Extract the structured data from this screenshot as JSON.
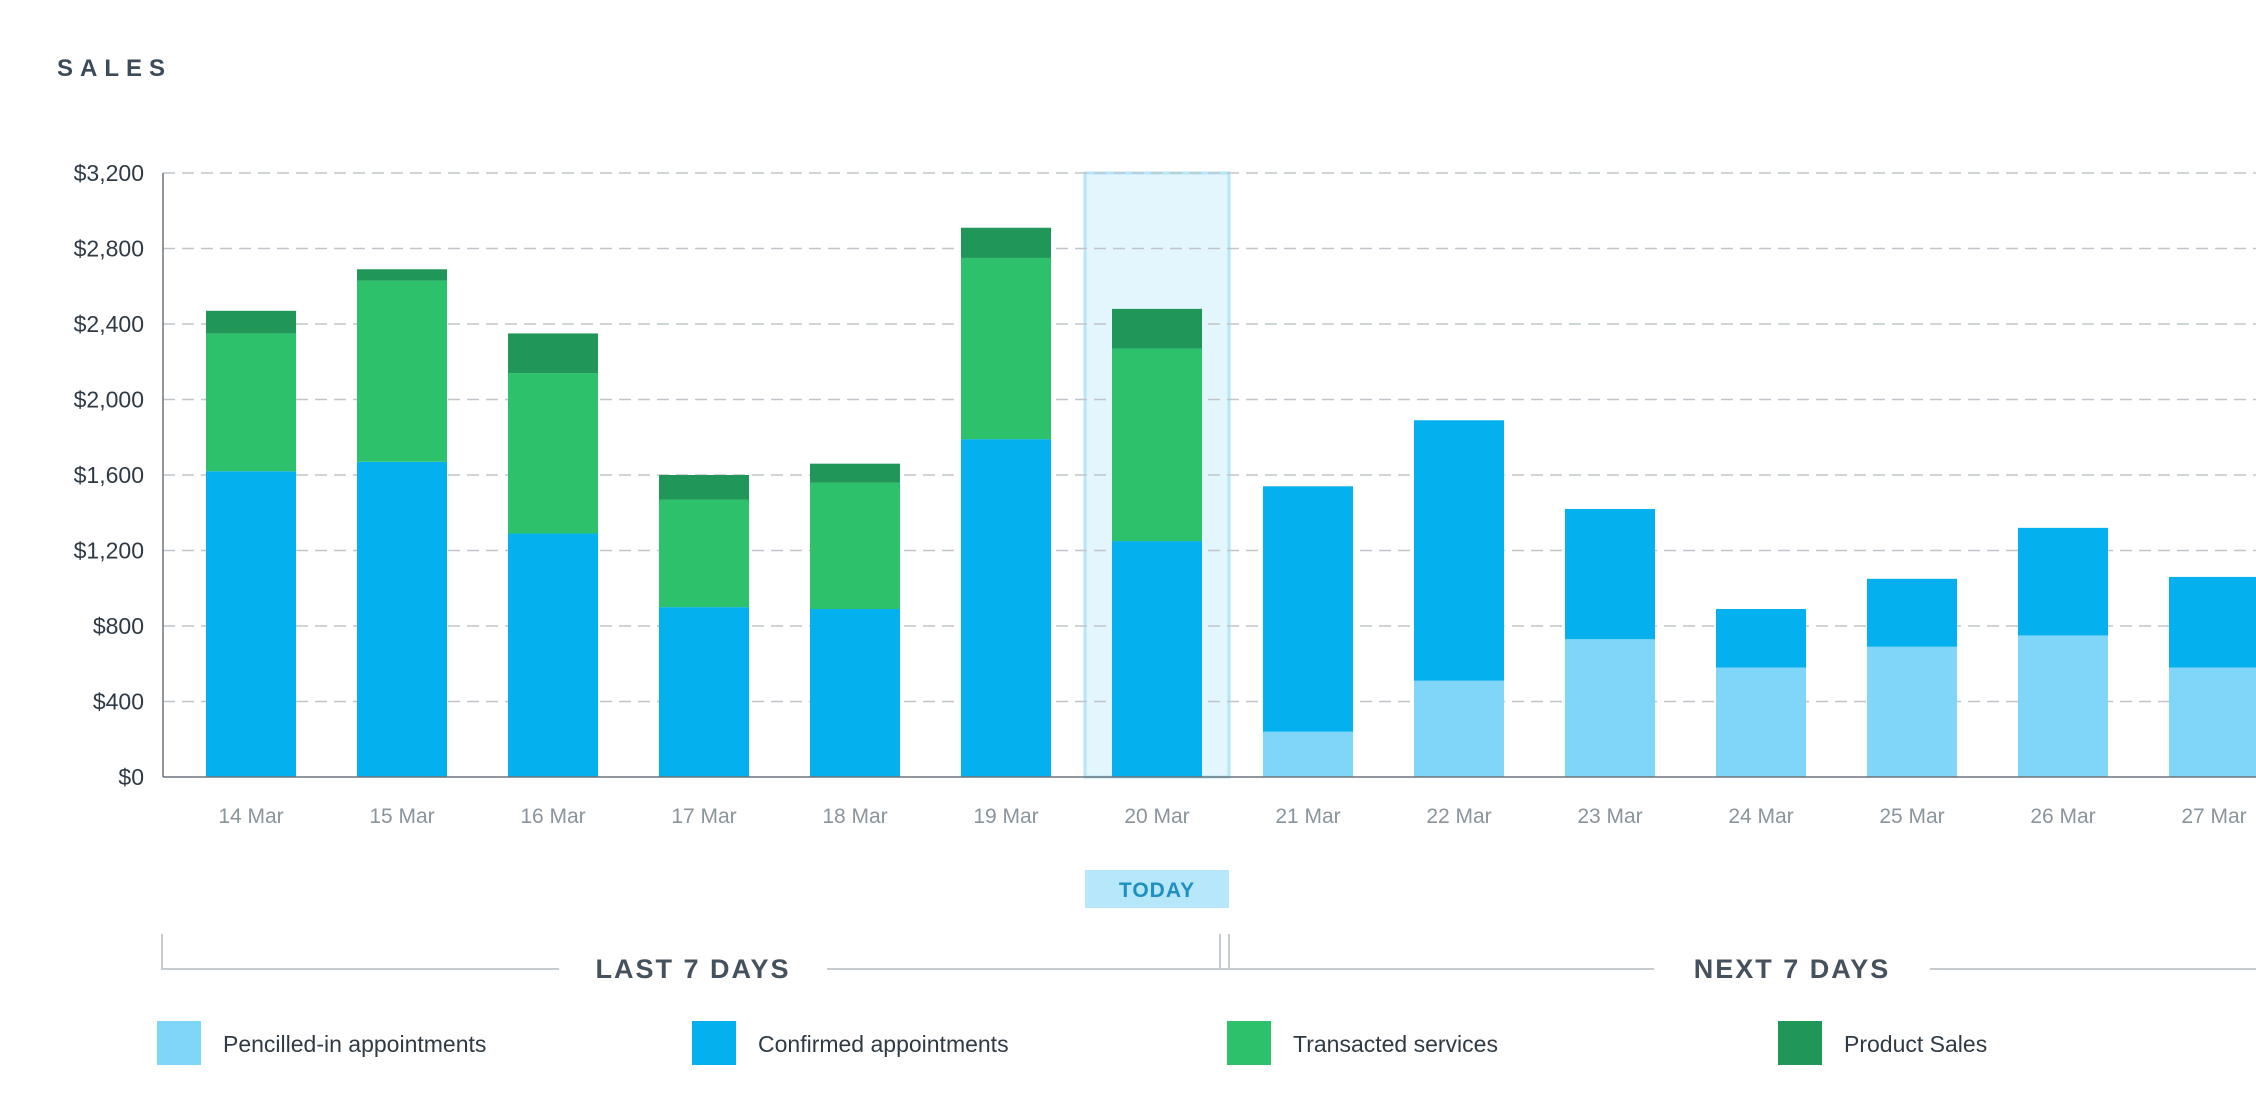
{
  "header": {
    "title": "SALES"
  },
  "chart_data": {
    "type": "bar",
    "stacked": true,
    "title": "SALES",
    "xlabel": "",
    "ylabel": "",
    "ylim": [
      0,
      3200
    ],
    "grid": true,
    "legend_position": "bottom",
    "y_ticks": [
      {
        "value": 0,
        "label": "$0"
      },
      {
        "value": 400,
        "label": "$400"
      },
      {
        "value": 800,
        "label": "$800"
      },
      {
        "value": 1200,
        "label": "$1,200"
      },
      {
        "value": 1600,
        "label": "$1,600"
      },
      {
        "value": 2000,
        "label": "$2,000"
      },
      {
        "value": 2400,
        "label": "$2,400"
      },
      {
        "value": 2800,
        "label": "$2,800"
      },
      {
        "value": 3200,
        "label": "$3,200"
      }
    ],
    "categories": [
      "14 Mar",
      "15 Mar",
      "16 Mar",
      "17 Mar",
      "18 Mar",
      "19 Mar",
      "20 Mar",
      "21 Mar",
      "22 Mar",
      "23 Mar",
      "24 Mar",
      "25 Mar",
      "26 Mar",
      "27 Mar"
    ],
    "series": [
      {
        "name": "Pencilled-in appointments",
        "color": "#80d6f8",
        "values": [
          0,
          0,
          0,
          0,
          0,
          0,
          0,
          240,
          510,
          730,
          580,
          690,
          750,
          580
        ]
      },
      {
        "name": "Confirmed appointments",
        "color": "#04b1ee",
        "values": [
          1620,
          1670,
          1290,
          900,
          890,
          1790,
          1250,
          1300,
          1380,
          690,
          310,
          360,
          570,
          480
        ]
      },
      {
        "name": "Transacted services",
        "color": "#2ec16c",
        "values": [
          730,
          960,
          850,
          570,
          670,
          960,
          1020,
          0,
          0,
          0,
          0,
          0,
          0,
          0
        ]
      },
      {
        "name": "Product Sales",
        "color": "#219659",
        "values": [
          120,
          60,
          210,
          130,
          100,
          160,
          210,
          0,
          0,
          0,
          0,
          0,
          0,
          0
        ]
      }
    ],
    "highlight": {
      "category": "20 Mar",
      "label": "TODAY",
      "color": "#e3f5fd",
      "border": "#b5e6f9"
    },
    "periods": [
      {
        "label": "LAST 7 DAYS",
        "from": "14 Mar",
        "to": "20 Mar"
      },
      {
        "label": "NEXT 7 DAYS",
        "from": "21 Mar",
        "to": "27 Mar"
      }
    ]
  }
}
